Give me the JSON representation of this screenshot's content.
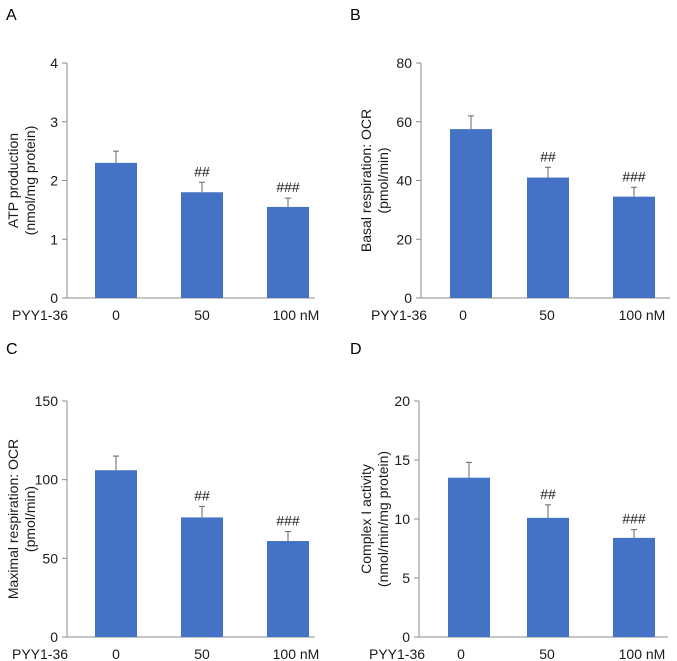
{
  "figure": {
    "treatment_label": "PYY1-36",
    "bar_color": "#4472c4"
  },
  "chart_data": [
    {
      "panel": "A",
      "type": "bar",
      "ylabel_line1": "ATP production",
      "ylabel_line2": "(nmol/mg protein)",
      "ylim": [
        0,
        4
      ],
      "yticks": [
        0,
        1,
        2,
        3,
        4
      ],
      "categories": [
        "0",
        "50",
        "100 nM"
      ],
      "values": [
        2.3,
        1.8,
        1.55
      ],
      "errors": [
        0.2,
        0.17,
        0.15
      ],
      "significance": [
        "",
        "##",
        "###"
      ]
    },
    {
      "panel": "B",
      "type": "bar",
      "ylabel_line1": "Basal respiration: OCR",
      "ylabel_line2": "(pmol/min)",
      "ylim": [
        0,
        80
      ],
      "yticks": [
        0,
        20,
        40,
        60,
        80
      ],
      "categories": [
        "0",
        "50",
        "100 nM"
      ],
      "values": [
        57.5,
        41,
        34.5
      ],
      "errors": [
        4.5,
        3.5,
        3.2
      ],
      "significance": [
        "",
        "##",
        "###"
      ]
    },
    {
      "panel": "C",
      "type": "bar",
      "ylabel_line1": "Maximal respiration: OCR",
      "ylabel_line2": "(pmol/min)",
      "ylim": [
        0,
        150
      ],
      "yticks": [
        0,
        50,
        100,
        150
      ],
      "categories": [
        "0",
        "50",
        "100 nM"
      ],
      "values": [
        106,
        76,
        61
      ],
      "errors": [
        9,
        7,
        6
      ],
      "significance": [
        "",
        "##",
        "###"
      ]
    },
    {
      "panel": "D",
      "type": "bar",
      "ylabel_line1": "Complex I activity",
      "ylabel_line2": "(nmol/min/mg protein)",
      "ylim": [
        0,
        20
      ],
      "yticks": [
        0,
        5,
        10,
        15,
        20
      ],
      "categories": [
        "0",
        "50",
        "100 nM"
      ],
      "values": [
        13.5,
        10.1,
        8.4
      ],
      "errors": [
        1.3,
        1.1,
        0.7
      ],
      "significance": [
        "",
        "##",
        "###"
      ]
    }
  ]
}
